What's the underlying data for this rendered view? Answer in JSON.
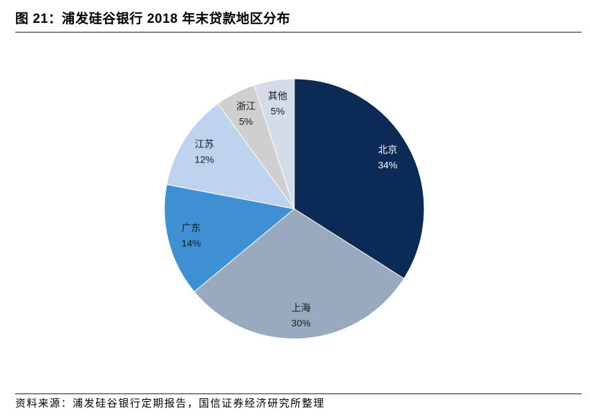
{
  "figure": {
    "title": "图 21：浦发硅谷银行 2018 年末贷款地区分布",
    "source": "资料来源：浦发硅谷银行定期报告，国信证券经济研究所整理"
  },
  "chart_data": {
    "type": "pie",
    "categories": [
      "北京",
      "上海",
      "广东",
      "江苏",
      "浙江",
      "其他"
    ],
    "values": [
      34,
      30,
      14,
      12,
      5,
      5
    ],
    "value_labels": [
      "34%",
      "30%",
      "14%",
      "12%",
      "5%",
      "5%"
    ],
    "colors": [
      "#0B2A55",
      "#9AAABE",
      "#3F90D2",
      "#BDD3EE",
      "#CFCFCF",
      "#D3DCE8"
    ],
    "label_colors": [
      "#FFFFFF",
      "#1A1A1A",
      "#1A1A1A",
      "#1A1A1A",
      "#1A1A1A",
      "#1A1A1A"
    ]
  }
}
